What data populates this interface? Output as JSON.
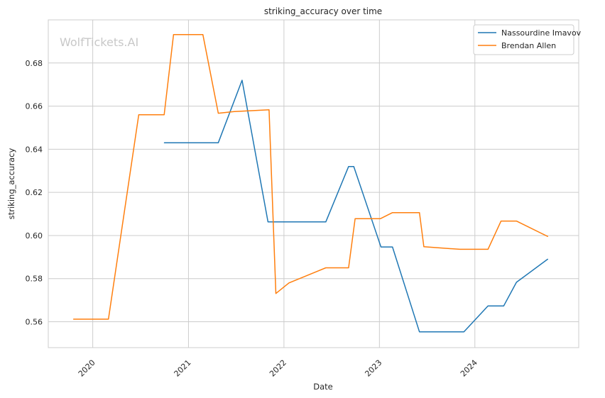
{
  "watermark": "WolfTickets.AI",
  "chart_data": {
    "type": "line",
    "title": "striking_accuracy over time",
    "xlabel": "Date",
    "ylabel": "striking_accuracy",
    "x_ticks": [
      "2020",
      "2021",
      "2022",
      "2023",
      "2024"
    ],
    "y_ticks": [
      "0.56",
      "0.58",
      "0.60",
      "0.62",
      "0.64",
      "0.66",
      "0.68"
    ],
    "xlim": [
      "2019-07-15",
      "2025-02-01"
    ],
    "ylim": [
      0.548,
      0.7
    ],
    "grid": true,
    "legend_position": "top-right",
    "colors": {
      "Nassourdine Imavov": "#1f77b4",
      "Brendan Allen": "#ff7f0e"
    },
    "series": [
      {
        "name": "Nassourdine Imavov",
        "points": [
          [
            "2020-10-01",
            0.643
          ],
          [
            "2021-04-25",
            0.643
          ],
          [
            "2021-07-25",
            0.672
          ],
          [
            "2021-11-01",
            0.6063
          ],
          [
            "2022-06-10",
            0.6063
          ],
          [
            "2022-09-05",
            0.632
          ],
          [
            "2022-09-25",
            0.632
          ],
          [
            "2023-01-07",
            0.5947
          ],
          [
            "2023-02-20",
            0.5947
          ],
          [
            "2023-06-03",
            0.5553
          ],
          [
            "2023-11-20",
            0.5553
          ],
          [
            "2024-02-20",
            0.5673
          ],
          [
            "2024-04-20",
            0.5673
          ],
          [
            "2024-06-08",
            0.5783
          ],
          [
            "2024-10-05",
            0.589
          ]
        ]
      },
      {
        "name": "Brendan Allen",
        "points": [
          [
            "2019-10-20",
            0.5612
          ],
          [
            "2020-03-01",
            0.5612
          ],
          [
            "2020-06-25",
            0.656
          ],
          [
            "2020-09-30",
            0.656
          ],
          [
            "2020-11-05",
            0.6932
          ],
          [
            "2021-02-25",
            0.6932
          ],
          [
            "2021-04-25",
            0.6567
          ],
          [
            "2021-06-25",
            0.6575
          ],
          [
            "2021-11-05",
            0.6583
          ],
          [
            "2021-12-01",
            0.5731
          ],
          [
            "2022-01-20",
            0.578
          ],
          [
            "2022-06-10",
            0.585
          ],
          [
            "2022-09-05",
            0.585
          ],
          [
            "2022-09-30",
            0.6078
          ],
          [
            "2023-01-05",
            0.6078
          ],
          [
            "2023-02-20",
            0.6106
          ],
          [
            "2023-06-03",
            0.6106
          ],
          [
            "2023-06-20",
            0.5948
          ],
          [
            "2023-11-05",
            0.5936
          ],
          [
            "2024-02-20",
            0.5936
          ],
          [
            "2024-04-10",
            0.6067
          ],
          [
            "2024-06-08",
            0.6067
          ],
          [
            "2024-10-05",
            0.5996
          ]
        ]
      }
    ]
  }
}
